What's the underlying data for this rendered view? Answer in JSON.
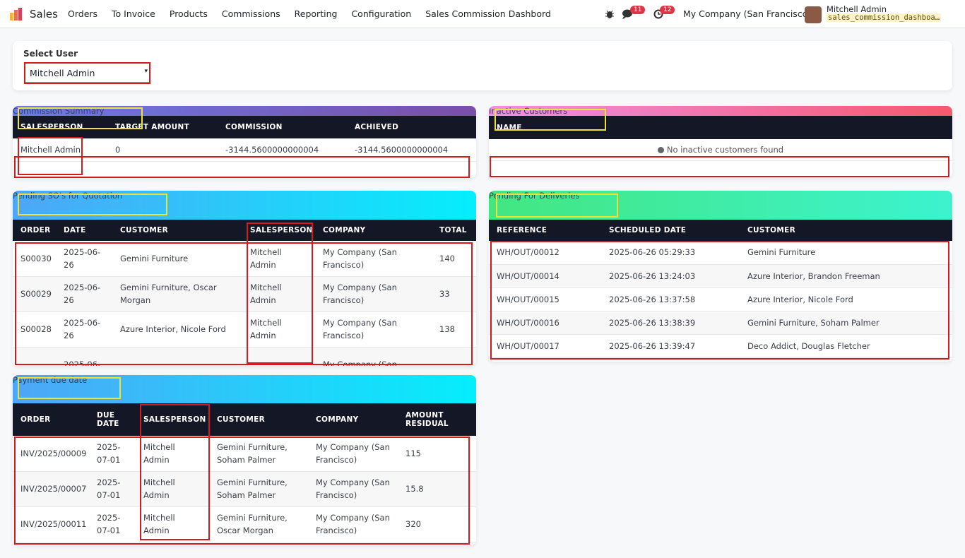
{
  "navbar": {
    "app": "Sales",
    "menu": [
      "Orders",
      "To Invoice",
      "Products",
      "Commissions",
      "Reporting",
      "Configuration",
      "Sales Commission Dashbord"
    ],
    "messages_badge": "11",
    "activities_badge": "12",
    "company": "My Company (San Francisco)",
    "user": "Mitchell Admin",
    "database": "sales_commission_dashboa…"
  },
  "select_user": {
    "label": "Select User",
    "value": "Mitchell Admin"
  },
  "commission_summary": {
    "title": "Commission Summary",
    "columns": [
      "SALESPERSON",
      "TARGET AMOUNT",
      "COMMISSION",
      "ACHIEVED"
    ],
    "rows": [
      [
        "Mitchell Admin",
        "0",
        "-3144.5600000000004",
        "-3144.5600000000004"
      ]
    ]
  },
  "inactive_customers": {
    "title": "Inactive Customers",
    "columns": [
      "NAME"
    ],
    "empty_message": "No inactive customers found"
  },
  "pending_quotations": {
    "title": "Pending SO's for Quotation",
    "columns": [
      "ORDER",
      "DATE",
      "CUSTOMER",
      "SALESPERSON",
      "COMPANY",
      "TOTAL"
    ],
    "rows": [
      [
        "S00030",
        "2025-06-26",
        "Gemini Furniture",
        "Mitchell Admin",
        "My Company (San Francisco)",
        "140"
      ],
      [
        "S00029",
        "2025-06-26",
        "Gemini Furniture, Oscar Morgan",
        "Mitchell Admin",
        "My Company (San Francisco)",
        "33"
      ],
      [
        "S00028",
        "2025-06-26",
        "Azure Interior, Nicole Ford",
        "Mitchell Admin",
        "My Company (San Francisco)",
        "138"
      ],
      [
        null,
        "2025-06-",
        null,
        null,
        "My Company (San",
        null
      ]
    ]
  },
  "pending_deliveries": {
    "title": "Pending For Deliveries",
    "columns": [
      "REFERENCE",
      "SCHEDULED DATE",
      "CUSTOMER"
    ],
    "rows": [
      [
        "WH/OUT/00012",
        "2025-06-26 05:29:33",
        "Gemini Furniture"
      ],
      [
        "WH/OUT/00014",
        "2025-06-26 13:24:03",
        "Azure Interior, Brandon Freeman"
      ],
      [
        "WH/OUT/00015",
        "2025-06-26 13:37:58",
        "Azure Interior, Nicole Ford"
      ],
      [
        "WH/OUT/00016",
        "2025-06-26 13:38:39",
        "Gemini Furniture, Soham Palmer"
      ],
      [
        "WH/OUT/00017",
        "2025-06-26 13:39:47",
        "Deco Addict, Douglas Fletcher"
      ]
    ]
  },
  "payment_due": {
    "title": "Payment due date",
    "columns": [
      "ORDER",
      "DUE DATE",
      "SALESPERSON",
      "CUSTOMER",
      "COMPANY",
      "AMOUNT RESIDUAL"
    ],
    "rows": [
      [
        "INV/2025/00009",
        "2025-07-01",
        "Mitchell Admin",
        "Gemini Furniture, Soham Palmer",
        "My Company (San Francisco)",
        "115"
      ],
      [
        "INV/2025/00007",
        "2025-07-01",
        "Mitchell Admin",
        "Gemini Furniture, Soham Palmer",
        "My Company (San Francisco)",
        "15.8"
      ],
      [
        "INV/2025/00011",
        "2025-07-01",
        "Mitchell Admin",
        "Gemini Furniture, Oscar Morgan",
        "My Company (San Francisco)",
        "320"
      ]
    ]
  }
}
